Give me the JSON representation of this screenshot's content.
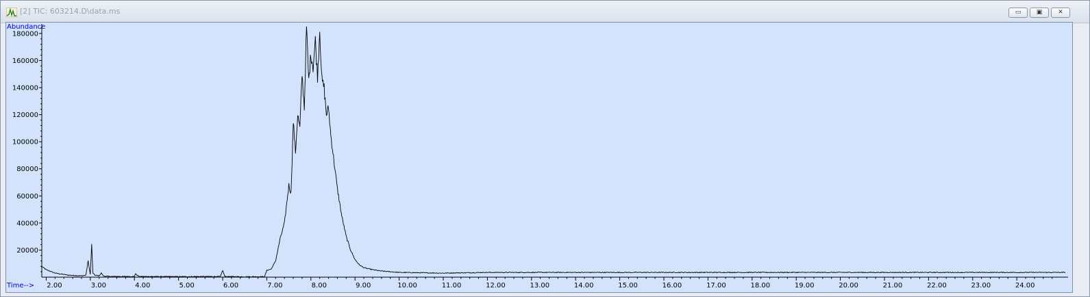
{
  "window": {
    "title": "[2] TIC: 603214.D\\data.ms",
    "buttons": [
      {
        "name": "minimize",
        "glyph": "▭"
      },
      {
        "name": "restore",
        "glyph": "▣"
      },
      {
        "name": "close",
        "glyph": "✕"
      }
    ]
  },
  "colors": {
    "plot_background": "#d2e3fb",
    "axis_label": "#0000cc",
    "trace": "#000000"
  },
  "chart_data": {
    "type": "line",
    "ylabel": "Abundance",
    "xlabel": "Time-->",
    "xlim": [
      1.9,
      25.1
    ],
    "ylim": [
      0,
      185000
    ],
    "x_ticks": [
      "2.00",
      "3.00",
      "4.00",
      "5.00",
      "6.00",
      "7.00",
      "8.00",
      "9.00",
      "10.00",
      "11.00",
      "12.00",
      "13.00",
      "14.00",
      "15.00",
      "16.00",
      "17.00",
      "18.00",
      "19.00",
      "20.00",
      "21.00",
      "22.00",
      "23.00",
      "24.00"
    ],
    "y_ticks": [
      "20000",
      "40000",
      "60000",
      "80000",
      "100000",
      "120000",
      "140000",
      "160000",
      "180000"
    ],
    "grid": false,
    "series": [
      {
        "x": [
          1.9,
          2.0,
          2.2,
          2.5,
          2.8,
          2.9,
          2.95,
          3.0,
          3.03,
          3.06,
          3.1,
          3.2,
          3.25,
          3.3,
          3.5,
          4.0,
          4.02,
          4.1,
          5.0,
          5.95,
          6.0,
          6.05,
          6.5,
          6.95,
          7.0,
          7.1,
          7.2,
          7.3,
          7.4,
          7.5,
          7.55,
          7.6,
          7.65,
          7.7,
          7.75,
          7.8,
          7.85,
          7.9,
          7.95,
          8.0,
          8.05,
          8.1,
          8.15,
          8.2,
          8.25,
          8.3,
          8.35,
          8.4,
          8.45,
          8.5,
          8.6,
          8.7,
          8.8,
          8.9,
          9.0,
          9.1,
          9.2,
          9.4,
          9.6,
          10.0,
          11.0,
          12.0,
          13.0,
          14.0,
          16.0,
          18.0,
          20.0,
          22.0,
          24.0,
          25.1
        ],
        "y": [
          8000,
          5500,
          3000,
          1500,
          1000,
          1500,
          12000,
          2000,
          24000,
          3000,
          1500,
          1000,
          3000,
          800,
          500,
          500,
          2500,
          500,
          400,
          500,
          5000,
          500,
          300,
          400,
          5000,
          6000,
          12000,
          28000,
          40000,
          68000,
          62000,
          115000,
          92000,
          120000,
          110000,
          150000,
          125000,
          185000,
          145000,
          165000,
          155000,
          175000,
          148000,
          183000,
          145000,
          140000,
          120000,
          125000,
          105000,
          92000,
          65000,
          45000,
          30000,
          20000,
          13000,
          9000,
          7000,
          5500,
          4500,
          3500,
          3000,
          3500,
          3500,
          3500,
          3500,
          3500,
          3500,
          3500,
          3500,
          3500
        ]
      }
    ]
  }
}
